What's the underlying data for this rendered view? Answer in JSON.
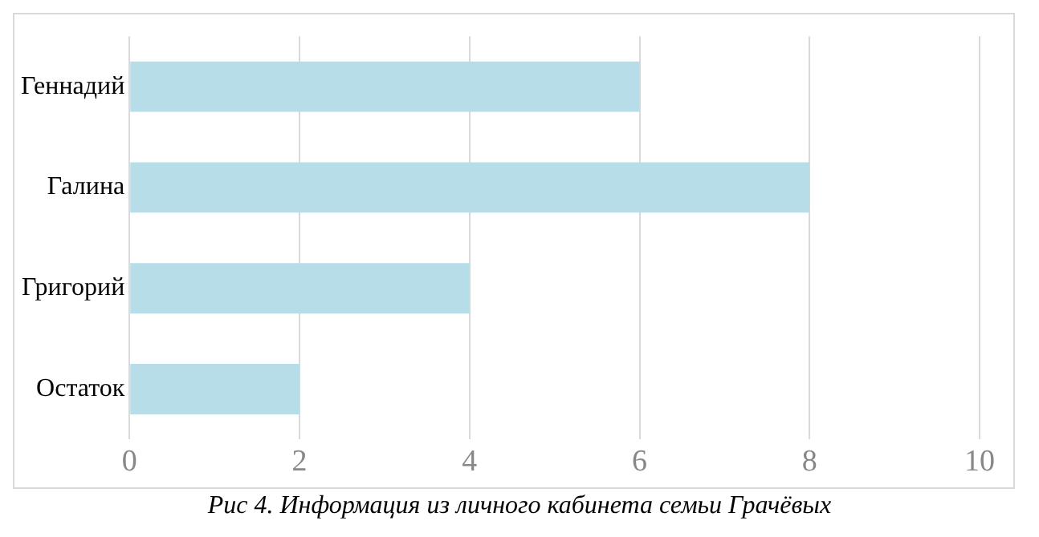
{
  "chart_data": {
    "type": "bar",
    "orientation": "horizontal",
    "categories": [
      "Геннадий",
      "Галина",
      "Григорий",
      "Остаток"
    ],
    "values": [
      6,
      8,
      4,
      2
    ],
    "color": "#b7dde8",
    "xlim": [
      0,
      10
    ],
    "xticks": [
      0,
      2,
      4,
      6,
      8,
      10
    ],
    "grid": "x",
    "annotations": [
      "Рис 4. Информация из личного кабинета семьи Грачёвых"
    ]
  }
}
